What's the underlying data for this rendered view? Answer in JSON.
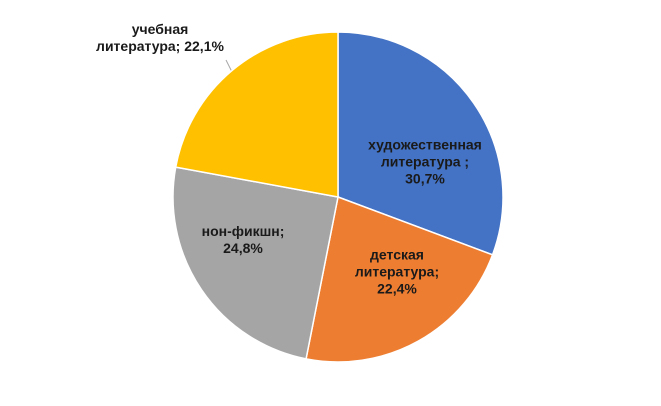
{
  "chart_data": {
    "type": "pie",
    "categories": [
      "художественная литература ;",
      "детская литература;",
      "нон-фикшн;",
      "учебная литература;"
    ],
    "values": [
      30.7,
      22.4,
      24.8,
      22.1
    ],
    "value_labels": [
      "30,7%",
      "22,4%",
      "24,8%",
      "22,1%"
    ],
    "colors": [
      "#4472c4",
      "#ed7d31",
      "#a5a5a5",
      "#ffc000"
    ]
  }
}
